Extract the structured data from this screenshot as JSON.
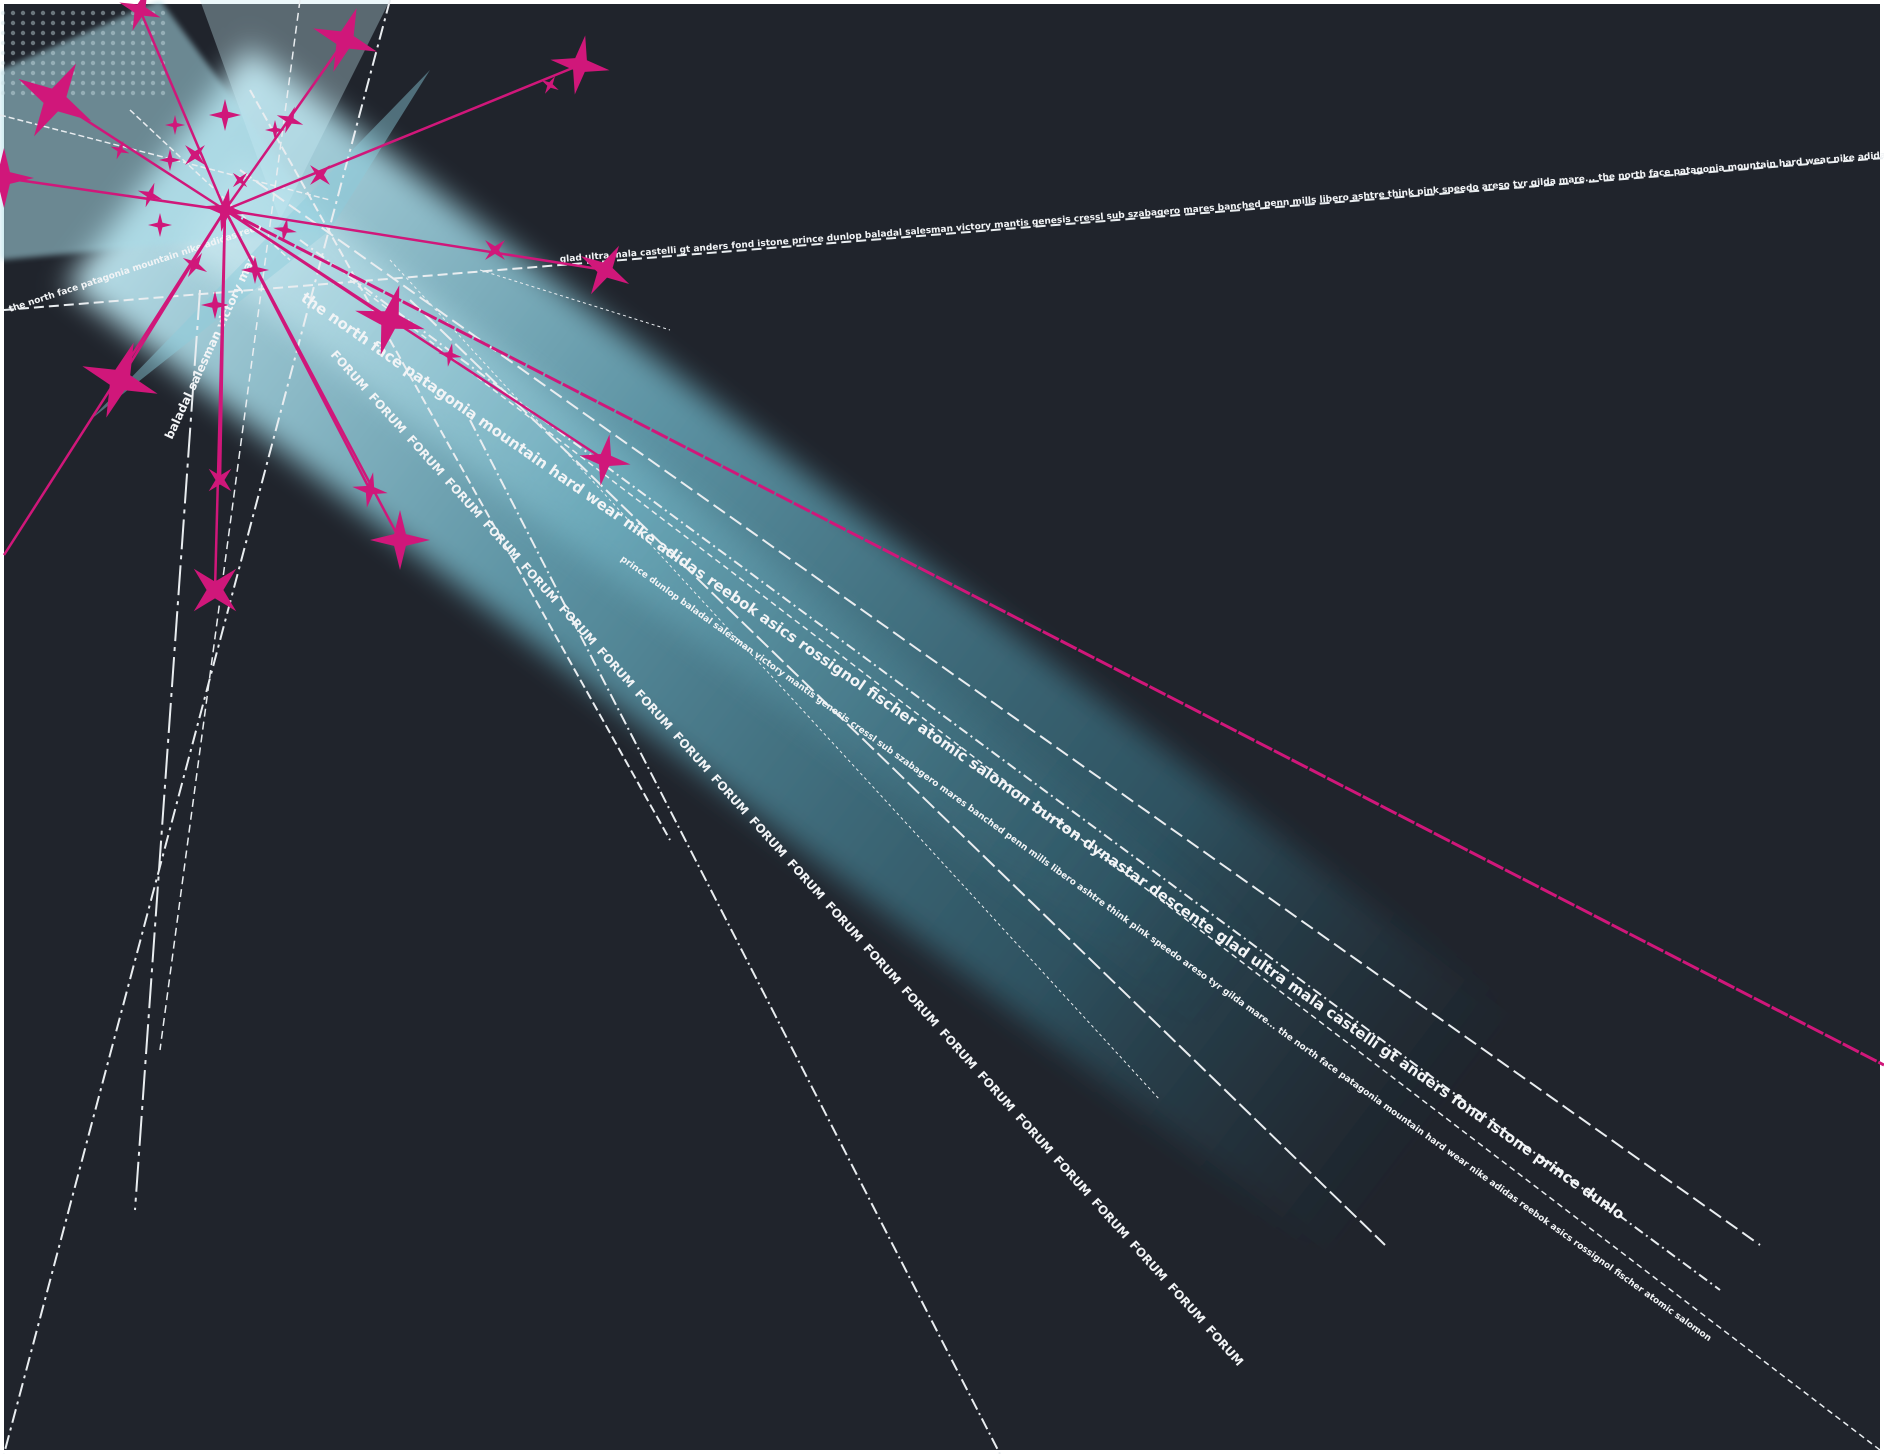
{
  "colors": {
    "background": "#20242c",
    "frame": "#ffffff",
    "beam": "#6fb6c9",
    "accent_magenta": "#d0177a",
    "line_white": "#e9edf0"
  },
  "ray_texts": {
    "top_right": "glad ultra mala castelli gt anders fond istone prince dunlop baladal salesman victory mantis genesis cressl sub szabagero mares banched penn mills libero ashtre think pink speedo areso tyr gilda mare... the north face patagonia mountain hard wear nike adidas reebok asics rossignol fischer atomic salomon burton dynastar descente",
    "main_ray": "the north face patagonia mountain hard wear nike adidas reebok asics rossignol fischer atomic salomon burton dynastar descente glad ultra mala castelli gt anders fond istone prince dunlop baladal salesman victory mantis genesis cressl sub szabagero mares banched penn mills libero ashtre think pink speedo areso tyr gilda mare...",
    "lower_ray": "prince dunlop baladal salesman victory mantis genesis cressl sub szabagero mares banched penn mills libero ashtre think pink speedo areso tyr gilda mare... the north face patagonia mountain hard wear nike adidas reebok asics rossignol fischer atomic salomon",
    "forum_word": "FORUM",
    "left_vertical": "baladal salesman victory mantis genesis",
    "corner_text": "the north face patagonia mountain nike adidas reebok asics"
  }
}
